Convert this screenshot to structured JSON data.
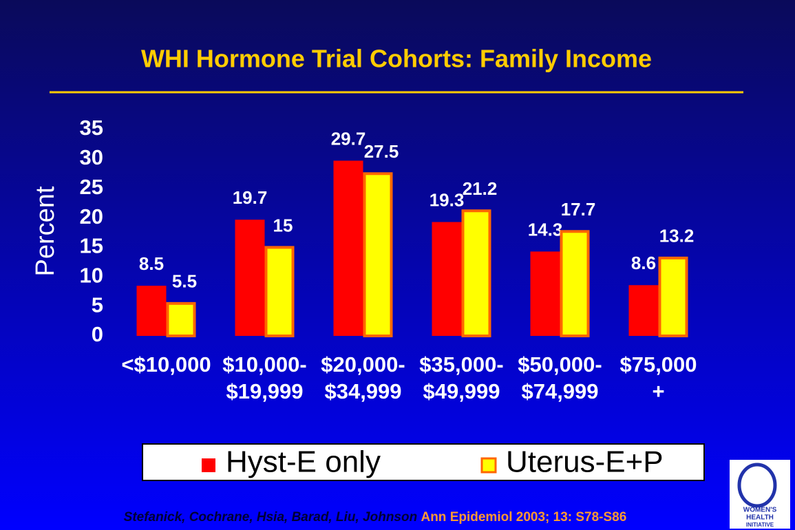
{
  "chart_data": {
    "type": "bar",
    "title": "WHI Hormone Trial Cohorts: Family Income",
    "y_label": "Percent",
    "categories": [
      [
        "<$10,000"
      ],
      [
        "$10,000-",
        "$19,999"
      ],
      [
        "$20,000-",
        "$34,999"
      ],
      [
        "$35,000-",
        "$49,999"
      ],
      [
        "$50,000-",
        "$74,999"
      ],
      [
        "$75,000",
        "+"
      ]
    ],
    "series": [
      {
        "name": "Hyst-E only",
        "color": "#ff0000",
        "values": [
          8.5,
          19.7,
          29.7,
          19.3,
          14.3,
          8.6
        ]
      },
      {
        "name": "Uterus-E+P",
        "color": "#ffff00",
        "values": [
          5.5,
          15,
          27.5,
          21.2,
          17.7,
          13.2
        ]
      }
    ],
    "ylim": [
      0,
      35
    ],
    "yticks": [
      0,
      5,
      10,
      15,
      20,
      25,
      30,
      35
    ],
    "legend": "bottom",
    "citation_authors": "Stefanick, Cochrane, Hsia, Barad, Liu, Johnson",
    "citation_journal": "Ann Epidemiol 2003; 13: S78-S86",
    "logo_text": [
      "WOMEN'S",
      "HEALTH",
      "INITIATIVE"
    ]
  }
}
